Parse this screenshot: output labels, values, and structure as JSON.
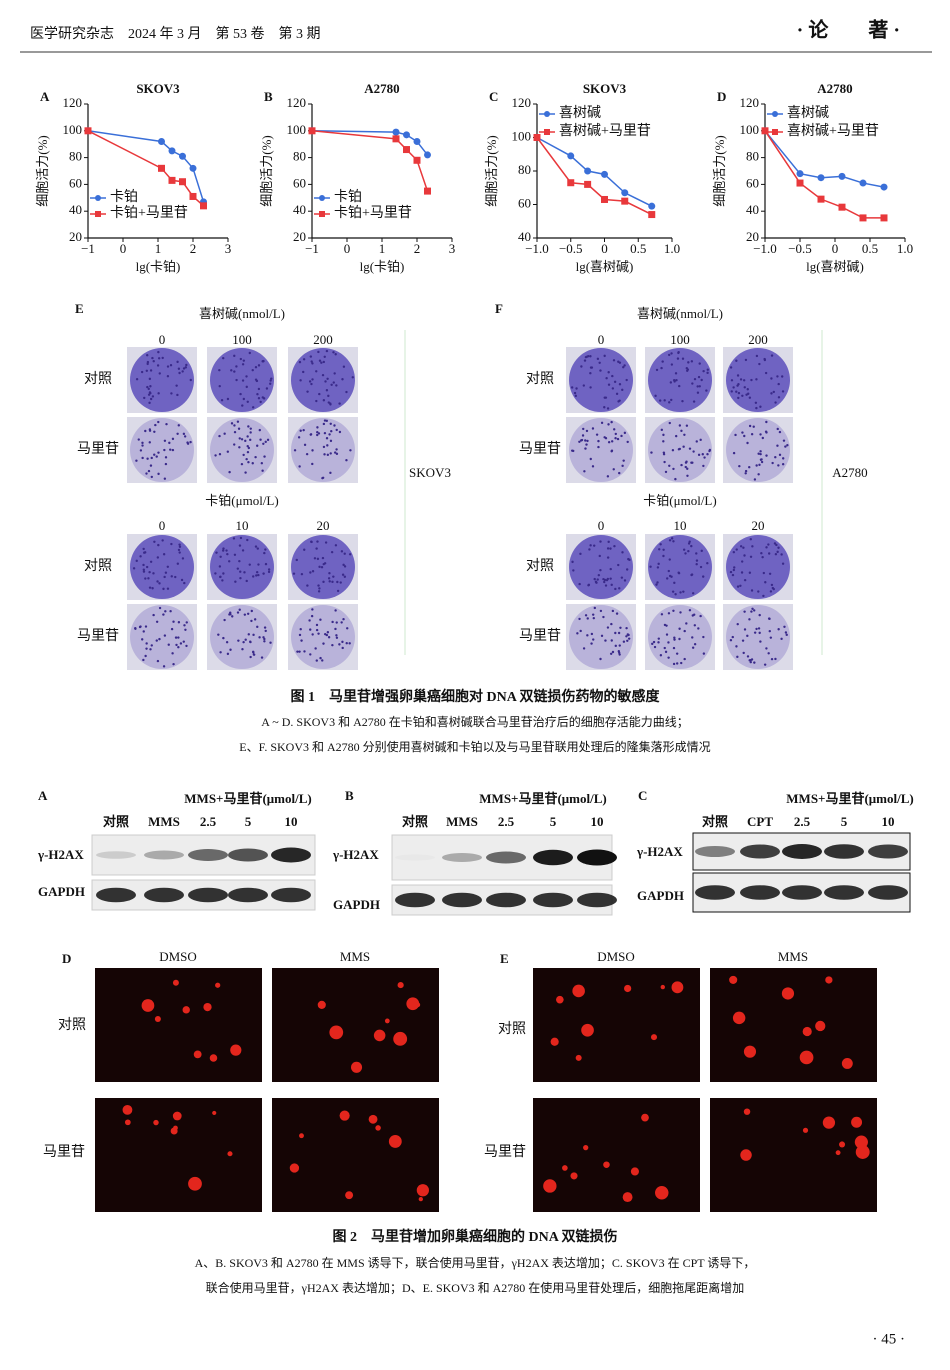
{
  "header": {
    "journal": "医学研究杂志　2024 年 3 月　第 53 卷　第 3 期",
    "section": "· 论　　著 ·"
  },
  "chart_data": [
    {
      "type": "line",
      "panel": "A",
      "title": "SKOV3",
      "x_label": "lg(卡铂)",
      "y_label": "细胞活力(%)",
      "xlim": [
        -1,
        3
      ],
      "xticks": [
        {
          "value": -1,
          "label": "−1"
        },
        0,
        1,
        2,
        3
      ],
      "ylim": [
        20,
        120
      ],
      "yticks": [
        20,
        40,
        60,
        80,
        100,
        120
      ],
      "legend": "lower-left",
      "x": [
        -1,
        1.1,
        1.4,
        1.7,
        2.0,
        2.3
      ],
      "series": [
        {
          "name": "卡铂",
          "color": "#3a6fd8",
          "marker": "circle",
          "values": [
            100,
            92,
            85,
            81,
            72,
            47
          ]
        },
        {
          "name": "卡铂+马里苷",
          "color": "#e8383b",
          "marker": "square",
          "values": [
            100,
            72,
            63,
            62,
            51,
            44
          ]
        }
      ]
    },
    {
      "type": "line",
      "panel": "B",
      "title": "A2780",
      "x_label": "lg(卡铂)",
      "y_label": "细胞活力(%)",
      "xlim": [
        -1,
        3
      ],
      "xticks": [
        {
          "value": -1,
          "label": "−1"
        },
        0,
        1,
        2,
        3
      ],
      "ylim": [
        20,
        120
      ],
      "yticks": [
        20,
        40,
        60,
        80,
        100,
        120
      ],
      "legend": "lower-left",
      "x": [
        -1,
        1.4,
        1.7,
        2.0,
        2.3
      ],
      "series": [
        {
          "name": "卡铂",
          "color": "#3a6fd8",
          "marker": "circle",
          "values": [
            100,
            99,
            97,
            92,
            82
          ]
        },
        {
          "name": "卡铂+马里苷",
          "color": "#e8383b",
          "marker": "square",
          "values": [
            100,
            94,
            86,
            78,
            55
          ]
        }
      ]
    },
    {
      "type": "line",
      "panel": "C",
      "title": "SKOV3",
      "x_label": "lg(喜树碱)",
      "y_label": "细胞活力(%)",
      "xlim": [
        -1,
        1
      ],
      "xticks": [
        {
          "value": -1,
          "label": "−1.0"
        },
        {
          "value": -0.5,
          "label": "−0.5"
        },
        0,
        0.5,
        {
          "value": 1,
          "label": "1.0"
        }
      ],
      "ylim": [
        40,
        120
      ],
      "yticks": [
        40,
        60,
        80,
        100,
        120
      ],
      "legend": "upper-left",
      "x": [
        -1,
        -0.5,
        -0.25,
        0,
        0.3,
        0.7
      ],
      "series": [
        {
          "name": "喜树碱",
          "color": "#3a6fd8",
          "marker": "circle",
          "values": [
            100,
            89,
            80,
            78,
            67,
            59
          ]
        },
        {
          "name": "喜树碱+马里苷",
          "color": "#e8383b",
          "marker": "square",
          "values": [
            100,
            73,
            72,
            63,
            62,
            54
          ]
        }
      ]
    },
    {
      "type": "line",
      "panel": "D",
      "title": "A2780",
      "x_label": "lg(喜树碱)",
      "y_label": "细胞活力(%)",
      "xlim": [
        -1,
        1
      ],
      "xticks": [
        {
          "value": -1,
          "label": "−1.0"
        },
        {
          "value": -0.5,
          "label": "−0.5"
        },
        0,
        0.5,
        {
          "value": 1,
          "label": "1.0"
        }
      ],
      "ylim": [
        20,
        120
      ],
      "yticks": [
        20,
        40,
        60,
        80,
        100,
        120
      ],
      "legend": "upper-left",
      "x": [
        -1,
        -0.5,
        -0.2,
        0.1,
        0.4,
        0.7
      ],
      "series": [
        {
          "name": "喜树碱",
          "color": "#3a6fd8",
          "marker": "circle",
          "values": [
            100,
            68,
            65,
            66,
            61,
            58
          ]
        },
        {
          "name": "喜树碱+马里苷",
          "color": "#e8383b",
          "marker": "square",
          "values": [
            100,
            61,
            49,
            43,
            35,
            35
          ]
        }
      ]
    }
  ],
  "figure1": {
    "colonies": [
      {
        "panel": "E",
        "treatment_1": "喜树碱(nmol/L)",
        "doses_1": [
          "0",
          "100",
          "200"
        ],
        "treatment_2": "卡铂(μmol/L)",
        "doses_2": [
          "0",
          "10",
          "20"
        ],
        "rows": [
          "对照",
          "马里苷"
        ],
        "cell_line": "SKOV3"
      },
      {
        "panel": "F",
        "treatment_1": "喜树碱(nmol/L)",
        "doses_1": [
          "0",
          "100",
          "200"
        ],
        "treatment_2": "卡铂(μmol/L)",
        "doses_2": [
          "0",
          "10",
          "20"
        ],
        "rows": [
          "对照",
          "马里苷"
        ],
        "cell_line": "A2780"
      }
    ],
    "caption": {
      "title": "图 1　马里苷增强卵巢癌细胞对 DNA 双链损伤药物的敏感度",
      "lines": [
        "A ~ D. SKOV3 和 A2780 在卡铂和喜树碱联合马里苷治疗后的细胞存活能力曲线；",
        "E、F. SKOV3 和 A2780 分别使用喜树碱和卡铂以及与马里苷联用处理后的隆集落形成情况"
      ]
    }
  },
  "figure2": {
    "blots": [
      {
        "panel": "A",
        "treatment": "MMS+马里苷(μmol/L)",
        "lanes": [
          "对照",
          "MMS",
          "2.5",
          "5",
          "10"
        ],
        "bands": [
          "γ-H2AX",
          "GAPDH"
        ]
      },
      {
        "panel": "B",
        "treatment": "MMS+马里苷(μmol/L)",
        "lanes": [
          "对照",
          "MMS",
          "2.5",
          "5",
          "10"
        ],
        "bands": [
          "γ-H2AX",
          "GAPDH"
        ]
      },
      {
        "panel": "C",
        "treatment": "MMS+马里苷(μmol/L)",
        "lanes": [
          "对照",
          "CPT",
          "2.5",
          "5",
          "10"
        ],
        "bands": [
          "γ-H2AX",
          "GAPDH"
        ]
      }
    ],
    "comets": [
      {
        "panel": "D",
        "columns": [
          "DMSO",
          "MMS"
        ],
        "rows": [
          "对照",
          "马里苷"
        ]
      },
      {
        "panel": "E",
        "columns": [
          "DMSO",
          "MMS"
        ],
        "rows": [
          "对照",
          "马里苷"
        ]
      }
    ],
    "caption": {
      "title": "图 2　马里苷增加卵巢癌细胞的 DNA 双链损伤",
      "lines": [
        "A、B. SKOV3 和 A2780 在 MMS 诱导下，联合使用马里苷，γH2AX 表达增加；C. SKOV3 在 CPT 诱导下，",
        "联合使用马里苷，γH2AX 表达增加；D、E. SKOV3 和 A2780 在使用马里苷处理后，细胞拖尾距离增加"
      ]
    }
  },
  "page_number": "· 45 ·"
}
